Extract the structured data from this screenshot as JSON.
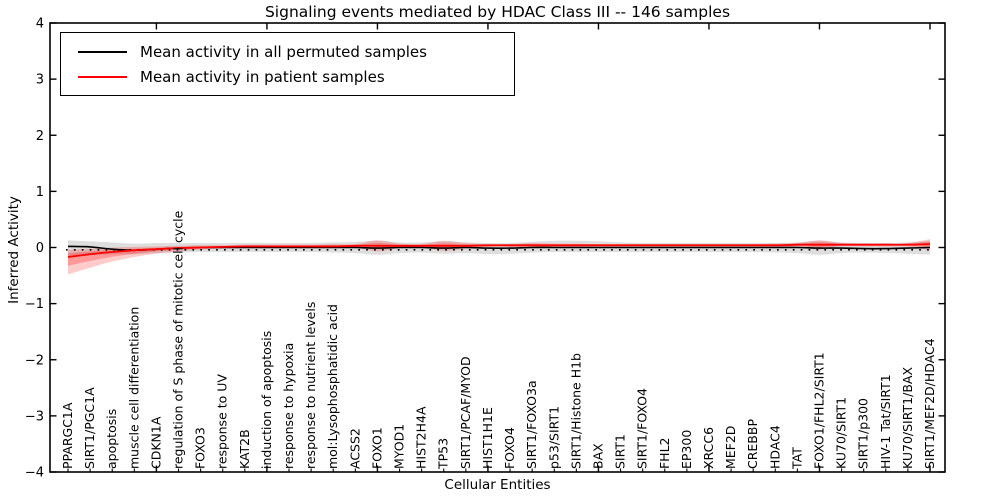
{
  "figure": {
    "title": "Signaling events mediated by HDAC Class III -- 146 samples",
    "xlabel": "Cellular Entities",
    "ylabel": "Inferred Activity"
  },
  "legend": {
    "entries": [
      {
        "label": "Mean activity in all permuted samples",
        "color": "#000000"
      },
      {
        "label": "Mean activity in patient samples",
        "color": "#ff0000"
      }
    ]
  },
  "chart_data": {
    "type": "line",
    "title": "Signaling events mediated by HDAC Class III -- 146 samples",
    "xlabel": "Cellular Entities",
    "ylabel": "Inferred Activity",
    "ylim": [
      -4,
      4
    ],
    "yticks": [
      -4,
      -3,
      -2,
      -1,
      0,
      1,
      2,
      3,
      4
    ],
    "xtick_every": 5,
    "grid": false,
    "legend_position": "upper left",
    "zero_reference_line": true,
    "categories": [
      "PPARGC1A",
      "SIRT1/PGC1A",
      "apoptosis",
      "muscle cell differentiation",
      "CDKN1A",
      "regulation of S phase of mitotic cell cycle",
      "FOXO3",
      "response to UV",
      "KAT2B",
      "induction of apoptosis",
      "response to hypoxia",
      "response to nutrient levels",
      "mol:Lysophosphatidic acid",
      "ACSS2",
      "FOXO1",
      "MYOD1",
      "HIST2H4A",
      "TP53",
      "SIRT1/PCAF/MYOD",
      "HIST1H1E",
      "FOXO4",
      "SIRT1/FOXO3a",
      "p53/SIRT1",
      "SIRT1/Histone H1b",
      "BAX",
      "SIRT1",
      "SIRT1/FOXO4",
      "FHL2",
      "EP300",
      "XRCC6",
      "MEF2D",
      "CREBBP",
      "HDAC4",
      "TAT",
      "FOXO1/FHL2/SIRT1",
      "KU70/SIRT1",
      "SIRT1/p300",
      "HIV-1 Tat/SIRT1",
      "KU70/SIRT1/BAX",
      "SIRT1/MEF2D/HDAC4"
    ],
    "series": [
      {
        "name": "Mean activity in all permuted samples",
        "color": "#000000",
        "band_color": "#000000",
        "band_opacity": 0.13,
        "values": [
          0.02,
          0.01,
          -0.03,
          -0.05,
          -0.03,
          -0.01,
          0.0,
          0.0,
          0.0,
          0.0,
          0.0,
          0.0,
          0.0,
          0.0,
          -0.01,
          0.0,
          0.0,
          -0.01,
          0.0,
          -0.01,
          -0.01,
          0.0,
          0.0,
          0.0,
          0.0,
          0.0,
          0.0,
          0.0,
          0.0,
          0.0,
          0.0,
          0.0,
          0.0,
          0.0,
          -0.01,
          -0.01,
          -0.02,
          -0.02,
          -0.01,
          0.0
        ],
        "band_upper": [
          0.13,
          0.11,
          0.09,
          0.07,
          0.08,
          0.08,
          0.08,
          0.08,
          0.08,
          0.08,
          0.08,
          0.08,
          0.09,
          0.1,
          0.12,
          0.09,
          0.09,
          0.11,
          0.09,
          0.08,
          0.08,
          0.1,
          0.12,
          0.12,
          0.11,
          0.09,
          0.08,
          0.08,
          0.08,
          0.08,
          0.08,
          0.08,
          0.08,
          0.09,
          0.12,
          0.09,
          0.08,
          0.08,
          0.09,
          0.12
        ],
        "band_lower": [
          -0.15,
          -0.13,
          -0.12,
          -0.12,
          -0.1,
          -0.09,
          -0.08,
          -0.08,
          -0.08,
          -0.08,
          -0.08,
          -0.08,
          -0.09,
          -0.1,
          -0.13,
          -0.1,
          -0.09,
          -0.11,
          -0.1,
          -0.12,
          -0.11,
          -0.09,
          -0.08,
          -0.08,
          -0.08,
          -0.08,
          -0.08,
          -0.08,
          -0.08,
          -0.08,
          -0.08,
          -0.08,
          -0.09,
          -0.1,
          -0.13,
          -0.1,
          -0.09,
          -0.1,
          -0.11,
          -0.13
        ]
      },
      {
        "name": "Mean activity in patient samples",
        "color": "#ff0000",
        "band_color": "#ff0000",
        "band_opacity": 0.2,
        "values": [
          -0.17,
          -0.12,
          -0.08,
          -0.05,
          -0.03,
          -0.01,
          0.0,
          0.01,
          0.02,
          0.02,
          0.02,
          0.02,
          0.02,
          0.03,
          0.03,
          0.03,
          0.03,
          0.03,
          0.03,
          0.04,
          0.04,
          0.04,
          0.04,
          0.04,
          0.04,
          0.04,
          0.04,
          0.04,
          0.04,
          0.04,
          0.04,
          0.04,
          0.04,
          0.05,
          0.05,
          0.05,
          0.05,
          0.05,
          0.05,
          0.06
        ],
        "band_upper": [
          -0.04,
          -0.02,
          0.0,
          0.01,
          0.02,
          0.03,
          0.04,
          0.04,
          0.05,
          0.05,
          0.05,
          0.05,
          0.06,
          0.06,
          0.13,
          0.07,
          0.06,
          0.12,
          0.08,
          0.06,
          0.06,
          0.08,
          0.07,
          0.07,
          0.06,
          0.06,
          0.06,
          0.06,
          0.06,
          0.06,
          0.06,
          0.06,
          0.07,
          0.08,
          0.13,
          0.08,
          0.07,
          0.07,
          0.08,
          0.15
        ],
        "band_lower": [
          -0.48,
          -0.36,
          -0.25,
          -0.17,
          -0.11,
          -0.07,
          -0.04,
          -0.02,
          -0.01,
          0.0,
          0.0,
          0.0,
          -0.01,
          0.0,
          -0.07,
          -0.01,
          0.0,
          -0.06,
          -0.02,
          0.01,
          0.01,
          0.0,
          0.01,
          0.01,
          0.02,
          0.02,
          0.02,
          0.02,
          0.02,
          0.02,
          0.02,
          0.02,
          0.01,
          0.01,
          -0.04,
          0.02,
          0.02,
          0.02,
          0.02,
          -0.05
        ]
      }
    ]
  }
}
